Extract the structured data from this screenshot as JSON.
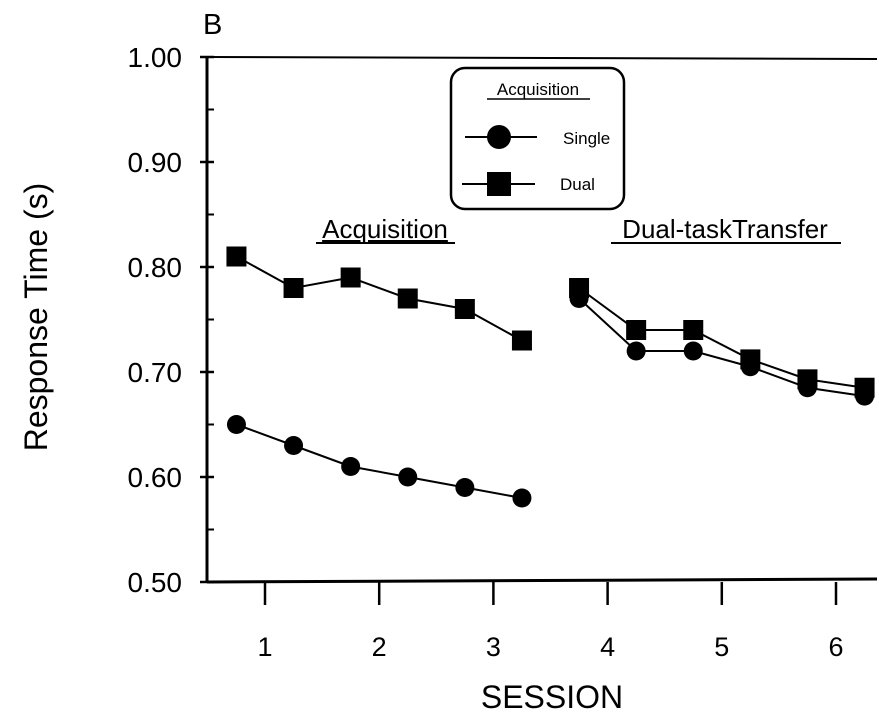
{
  "chart_data": {
    "type": "line",
    "panel_label": "B",
    "ylabel": "Response Time (s)",
    "xlabel": "SESSION",
    "ylim": [
      0.5,
      1.0
    ],
    "y_ticks": [
      "0.50",
      "0.60",
      "0.70",
      "0.80",
      "0.90",
      "1.00"
    ],
    "x_ticks": [
      "1",
      "2",
      "3",
      "4",
      "5",
      "6"
    ],
    "grid": false,
    "legend": {
      "title": "Acquisition",
      "placement": "top-center",
      "entries": [
        "Single",
        "Dual"
      ]
    },
    "annotations": [
      "Acquisition",
      "Dual-taskTransfer"
    ],
    "series": [
      {
        "name": "Single",
        "marker": "circle",
        "segments": [
          {
            "x": [
              0.75,
              1.25,
              1.75,
              2.25,
              2.75,
              3.25
            ],
            "y": [
              0.65,
              0.63,
              0.61,
              0.6,
              0.59,
              0.58
            ]
          },
          {
            "x": [
              3.75,
              4.25,
              4.75,
              5.25,
              5.75,
              6.25
            ],
            "y": [
              0.77,
              0.72,
              0.72,
              0.705,
              0.685,
              0.677
            ]
          }
        ]
      },
      {
        "name": "Dual",
        "marker": "square",
        "segments": [
          {
            "x": [
              0.75,
              1.25,
              1.75,
              2.25,
              2.75,
              3.25
            ],
            "y": [
              0.81,
              0.78,
              0.79,
              0.77,
              0.76,
              0.73
            ]
          },
          {
            "x": [
              3.75,
              4.25,
              4.75,
              5.25,
              5.75,
              6.25
            ],
            "y": [
              0.78,
              0.74,
              0.74,
              0.712,
              0.693,
              0.685
            ]
          }
        ]
      }
    ]
  }
}
